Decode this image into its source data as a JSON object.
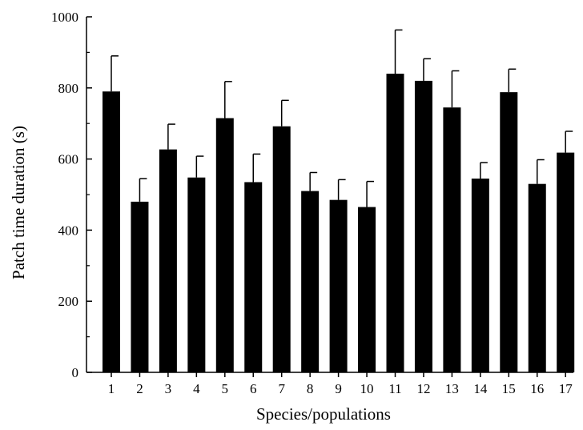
{
  "chart_data": {
    "type": "bar",
    "title": "",
    "xlabel": "Species/populations",
    "ylabel": "Patch time duration (s)",
    "categories": [
      "1",
      "2",
      "3",
      "4",
      "5",
      "6",
      "7",
      "8",
      "9",
      "10",
      "11",
      "12",
      "13",
      "14",
      "15",
      "16",
      "17"
    ],
    "values": [
      790,
      480,
      627,
      548,
      715,
      535,
      692,
      510,
      485,
      465,
      840,
      820,
      745,
      545,
      788,
      530,
      618
    ],
    "error_upper": [
      890,
      545,
      698,
      608,
      818,
      614,
      765,
      562,
      542,
      537,
      963,
      882,
      848,
      590,
      853,
      598,
      678
    ],
    "ylim": [
      0,
      1000
    ],
    "yticks": [
      0,
      200,
      400,
      600,
      800,
      1000
    ],
    "yticks_minor": [
      100,
      300,
      500,
      700,
      900
    ],
    "grid": false,
    "legend": "none",
    "bar_color": "#000000"
  }
}
